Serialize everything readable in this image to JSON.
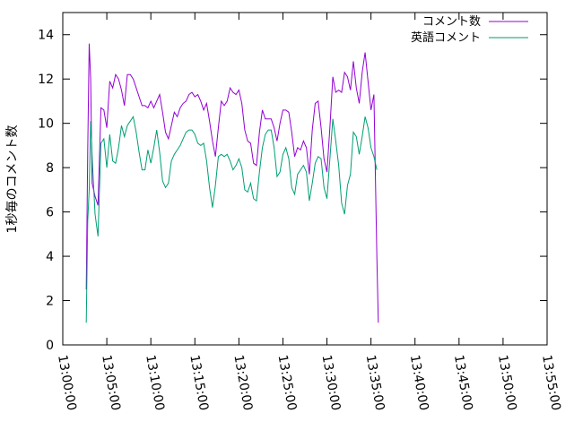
{
  "chart_data": {
    "type": "line",
    "title": "",
    "xlabel": "",
    "ylabel": "1秒毎のコメント数",
    "xlim": [
      "13:00:00",
      "13:55:00"
    ],
    "ylim": [
      0,
      15
    ],
    "grid": false,
    "legend_position": "top-right",
    "x_ticks": [
      "13:00:00",
      "13:05:00",
      "13:10:00",
      "13:15:00",
      "13:20:00",
      "13:25:00",
      "13:30:00",
      "13:35:00",
      "13:40:00",
      "13:45:00",
      "13:50:00",
      "13:55:00"
    ],
    "y_ticks": [
      0,
      2,
      4,
      6,
      8,
      10,
      12,
      14
    ],
    "series": [
      {
        "name": "コメント数",
        "color": "#9400d3",
        "points": [
          [
            "13:02:40",
            2.5
          ],
          [
            "13:02:50",
            8.8
          ],
          [
            "13:03:00",
            13.6
          ],
          [
            "13:03:10",
            12.0
          ],
          [
            "13:03:20",
            7.3
          ],
          [
            "13:03:40",
            6.7
          ],
          [
            "13:04:00",
            6.3
          ],
          [
            "13:04:20",
            10.7
          ],
          [
            "13:04:40",
            10.6
          ],
          [
            "13:05:00",
            9.8
          ],
          [
            "13:05:20",
            11.9
          ],
          [
            "13:05:40",
            11.6
          ],
          [
            "13:06:00",
            12.2
          ],
          [
            "13:06:20",
            12.0
          ],
          [
            "13:06:40",
            11.5
          ],
          [
            "13:07:00",
            10.8
          ],
          [
            "13:07:20",
            12.2
          ],
          [
            "13:07:40",
            12.2
          ],
          [
            "13:08:00",
            12.0
          ],
          [
            "13:08:20",
            11.6
          ],
          [
            "13:08:40",
            11.2
          ],
          [
            "13:09:00",
            10.8
          ],
          [
            "13:09:20",
            10.8
          ],
          [
            "13:09:40",
            10.7
          ],
          [
            "13:10:00",
            11.0
          ],
          [
            "13:10:20",
            10.7
          ],
          [
            "13:10:40",
            11.0
          ],
          [
            "13:11:00",
            11.3
          ],
          [
            "13:11:20",
            10.5
          ],
          [
            "13:11:40",
            9.6
          ],
          [
            "13:12:00",
            9.3
          ],
          [
            "13:12:20",
            9.9
          ],
          [
            "13:12:40",
            10.5
          ],
          [
            "13:13:00",
            10.3
          ],
          [
            "13:13:20",
            10.7
          ],
          [
            "13:13:40",
            10.9
          ],
          [
            "13:14:00",
            11.0
          ],
          [
            "13:14:20",
            11.3
          ],
          [
            "13:14:40",
            11.4
          ],
          [
            "13:15:00",
            11.2
          ],
          [
            "13:15:20",
            11.3
          ],
          [
            "13:15:40",
            11.0
          ],
          [
            "13:16:00",
            10.6
          ],
          [
            "13:16:20",
            10.9
          ],
          [
            "13:16:40",
            10.1
          ],
          [
            "13:17:00",
            9.2
          ],
          [
            "13:17:20",
            8.5
          ],
          [
            "13:17:40",
            9.8
          ],
          [
            "13:18:00",
            11.0
          ],
          [
            "13:18:20",
            10.8
          ],
          [
            "13:18:40",
            11.0
          ],
          [
            "13:19:00",
            11.6
          ],
          [
            "13:19:20",
            11.4
          ],
          [
            "13:19:40",
            11.3
          ],
          [
            "13:20:00",
            11.5
          ],
          [
            "13:20:20",
            10.9
          ],
          [
            "13:20:40",
            9.7
          ],
          [
            "13:21:00",
            9.2
          ],
          [
            "13:21:20",
            9.1
          ],
          [
            "13:21:40",
            8.2
          ],
          [
            "13:22:00",
            8.1
          ],
          [
            "13:22:20",
            9.6
          ],
          [
            "13:22:40",
            10.6
          ],
          [
            "13:23:00",
            10.2
          ],
          [
            "13:23:20",
            10.2
          ],
          [
            "13:23:40",
            10.2
          ],
          [
            "13:24:00",
            9.8
          ],
          [
            "13:24:20",
            9.2
          ],
          [
            "13:24:40",
            10.0
          ],
          [
            "13:25:00",
            10.6
          ],
          [
            "13:25:20",
            10.6
          ],
          [
            "13:25:40",
            10.5
          ],
          [
            "13:26:00",
            9.6
          ],
          [
            "13:26:20",
            8.5
          ],
          [
            "13:26:40",
            8.9
          ],
          [
            "13:27:00",
            8.8
          ],
          [
            "13:27:20",
            9.2
          ],
          [
            "13:27:40",
            8.9
          ],
          [
            "13:28:00",
            7.7
          ],
          [
            "13:28:20",
            9.7
          ],
          [
            "13:28:40",
            10.9
          ],
          [
            "13:29:00",
            11.0
          ],
          [
            "13:29:20",
            9.8
          ],
          [
            "13:29:40",
            8.4
          ],
          [
            "13:30:00",
            7.8
          ],
          [
            "13:30:20",
            9.8
          ],
          [
            "13:30:40",
            12.1
          ],
          [
            "13:31:00",
            11.4
          ],
          [
            "13:31:20",
            11.5
          ],
          [
            "13:31:40",
            11.4
          ],
          [
            "13:32:00",
            12.3
          ],
          [
            "13:32:20",
            12.1
          ],
          [
            "13:32:40",
            11.5
          ],
          [
            "13:33:00",
            12.8
          ],
          [
            "13:33:20",
            11.6
          ],
          [
            "13:33:40",
            10.9
          ],
          [
            "13:34:00",
            12.3
          ],
          [
            "13:34:20",
            13.2
          ],
          [
            "13:34:40",
            11.9
          ],
          [
            "13:35:00",
            10.6
          ],
          [
            "13:35:20",
            11.3
          ],
          [
            "13:35:40",
            4.0
          ],
          [
            "13:35:50",
            1.0
          ]
        ]
      },
      {
        "name": "英語コメント",
        "color": "#009e73",
        "points": [
          [
            "13:02:40",
            1.0
          ],
          [
            "13:02:50",
            5.6
          ],
          [
            "13:03:00",
            7.0
          ],
          [
            "13:03:10",
            10.1
          ],
          [
            "13:03:20",
            8.5
          ],
          [
            "13:03:40",
            5.9
          ],
          [
            "13:04:00",
            4.9
          ],
          [
            "13:04:20",
            9.1
          ],
          [
            "13:04:40",
            9.3
          ],
          [
            "13:05:00",
            8.0
          ],
          [
            "13:05:20",
            9.5
          ],
          [
            "13:05:40",
            8.3
          ],
          [
            "13:06:00",
            8.2
          ],
          [
            "13:06:20",
            8.9
          ],
          [
            "13:06:40",
            9.9
          ],
          [
            "13:07:00",
            9.4
          ],
          [
            "13:07:20",
            9.9
          ],
          [
            "13:07:40",
            10.1
          ],
          [
            "13:08:00",
            10.3
          ],
          [
            "13:08:20",
            9.6
          ],
          [
            "13:08:40",
            8.7
          ],
          [
            "13:09:00",
            7.9
          ],
          [
            "13:09:20",
            7.9
          ],
          [
            "13:09:40",
            8.8
          ],
          [
            "13:10:00",
            8.2
          ],
          [
            "13:10:20",
            8.9
          ],
          [
            "13:10:40",
            9.7
          ],
          [
            "13:11:00",
            8.7
          ],
          [
            "13:11:20",
            7.4
          ],
          [
            "13:11:40",
            7.1
          ],
          [
            "13:12:00",
            7.3
          ],
          [
            "13:12:20",
            8.3
          ],
          [
            "13:12:40",
            8.6
          ],
          [
            "13:13:00",
            8.8
          ],
          [
            "13:13:20",
            9.0
          ],
          [
            "13:13:40",
            9.3
          ],
          [
            "13:14:00",
            9.6
          ],
          [
            "13:14:20",
            9.7
          ],
          [
            "13:14:40",
            9.7
          ],
          [
            "13:15:00",
            9.5
          ],
          [
            "13:15:20",
            9.1
          ],
          [
            "13:15:40",
            9.0
          ],
          [
            "13:16:00",
            9.1
          ],
          [
            "13:16:20",
            8.3
          ],
          [
            "13:16:40",
            7.1
          ],
          [
            "13:17:00",
            6.2
          ],
          [
            "13:17:20",
            7.2
          ],
          [
            "13:17:40",
            8.5
          ],
          [
            "13:18:00",
            8.6
          ],
          [
            "13:18:20",
            8.5
          ],
          [
            "13:18:40",
            8.6
          ],
          [
            "13:19:00",
            8.3
          ],
          [
            "13:19:20",
            7.9
          ],
          [
            "13:19:40",
            8.1
          ],
          [
            "13:20:00",
            8.4
          ],
          [
            "13:20:20",
            8.0
          ],
          [
            "13:20:40",
            7.0
          ],
          [
            "13:21:00",
            6.9
          ],
          [
            "13:21:20",
            7.3
          ],
          [
            "13:21:40",
            6.6
          ],
          [
            "13:22:00",
            6.5
          ],
          [
            "13:22:20",
            7.8
          ],
          [
            "13:22:40",
            8.9
          ],
          [
            "13:23:00",
            9.5
          ],
          [
            "13:23:20",
            9.7
          ],
          [
            "13:23:40",
            9.7
          ],
          [
            "13:24:00",
            8.9
          ],
          [
            "13:24:20",
            7.6
          ],
          [
            "13:24:40",
            7.8
          ],
          [
            "13:25:00",
            8.6
          ],
          [
            "13:25:20",
            8.9
          ],
          [
            "13:25:40",
            8.4
          ],
          [
            "13:26:00",
            7.1
          ],
          [
            "13:26:20",
            6.8
          ],
          [
            "13:26:40",
            7.7
          ],
          [
            "13:27:00",
            7.9
          ],
          [
            "13:27:20",
            8.1
          ],
          [
            "13:27:40",
            7.8
          ],
          [
            "13:28:00",
            6.5
          ],
          [
            "13:28:20",
            7.3
          ],
          [
            "13:28:40",
            8.2
          ],
          [
            "13:29:00",
            8.5
          ],
          [
            "13:29:20",
            8.4
          ],
          [
            "13:29:40",
            7.1
          ],
          [
            "13:30:00",
            6.6
          ],
          [
            "13:30:20",
            8.4
          ],
          [
            "13:30:40",
            10.2
          ],
          [
            "13:31:00",
            9.2
          ],
          [
            "13:31:20",
            8.1
          ],
          [
            "13:31:40",
            6.4
          ],
          [
            "13:32:00",
            5.9
          ],
          [
            "13:32:20",
            7.2
          ],
          [
            "13:32:40",
            7.7
          ],
          [
            "13:33:00",
            9.6
          ],
          [
            "13:33:20",
            9.4
          ],
          [
            "13:33:40",
            8.6
          ],
          [
            "13:34:00",
            9.4
          ],
          [
            "13:34:20",
            10.3
          ],
          [
            "13:34:40",
            9.8
          ],
          [
            "13:35:00",
            8.9
          ],
          [
            "13:35:20",
            8.5
          ],
          [
            "13:35:40",
            7.9
          ]
        ]
      }
    ]
  }
}
